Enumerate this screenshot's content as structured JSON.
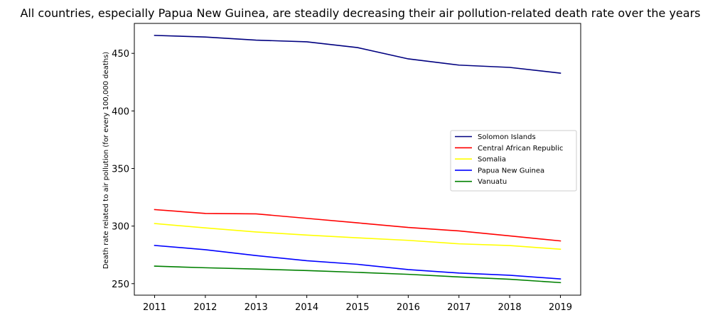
{
  "chart_data": {
    "type": "line",
    "title": "All countries, especially Papua New Guinea, are steadily decreasing their air pollution-related death rate over the years",
    "xlabel": "",
    "ylabel": "Death rate related to air pollution (for every 100,000 deaths)",
    "x": [
      2011,
      2012,
      2013,
      2014,
      2015,
      2016,
      2017,
      2018,
      2019
    ],
    "x_tick_labels": [
      "2011",
      "2012",
      "2013",
      "2014",
      "2015",
      "2016",
      "2017",
      "2018",
      "2019"
    ],
    "xlim": [
      2010.6,
      2019.4
    ],
    "ylim": [
      240,
      476
    ],
    "y_ticks": [
      250,
      300,
      350,
      400,
      450
    ],
    "y_tick_labels": [
      "250",
      "300",
      "350",
      "400",
      "450"
    ],
    "grid": false,
    "legend_position": "center-right",
    "series": [
      {
        "name": "Solomon Islands",
        "color": "#000080",
        "values": [
          465.6,
          464.2,
          461.5,
          460.0,
          455.0,
          445.2,
          439.8,
          437.8,
          432.8
        ]
      },
      {
        "name": "Central African Republic",
        "color": "#ff0000",
        "values": [
          314.3,
          311.0,
          310.6,
          306.7,
          302.8,
          298.8,
          295.8,
          291.5,
          287.1
        ]
      },
      {
        "name": "Somalia",
        "color": "#ffff00",
        "values": [
          302.2,
          298.4,
          294.9,
          292.2,
          289.8,
          287.6,
          284.6,
          283.1,
          279.9
        ]
      },
      {
        "name": "Papua New Guinea",
        "color": "#0000ff",
        "values": [
          283.2,
          279.5,
          274.4,
          269.9,
          266.8,
          262.2,
          259.2,
          257.3,
          254.1
        ]
      },
      {
        "name": "Vanuatu",
        "color": "#008000",
        "values": [
          265.2,
          263.8,
          262.7,
          261.4,
          259.8,
          258.1,
          255.8,
          253.8,
          250.9
        ]
      }
    ]
  }
}
